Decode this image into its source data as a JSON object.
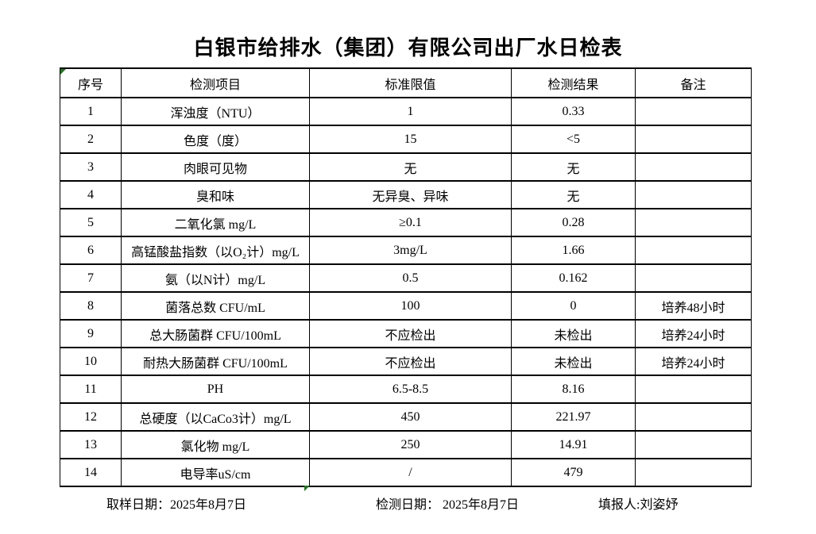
{
  "title": "白银市给排水（集团）有限公司出厂水日检表",
  "table": {
    "headers": [
      "序号",
      "检测项目",
      "标准限值",
      "检测结果",
      "备注"
    ],
    "rows": [
      [
        "1",
        "浑浊度（NTU）",
        "1",
        "0.33",
        ""
      ],
      [
        "2",
        "色度（度）",
        "15",
        "<5",
        ""
      ],
      [
        "3",
        "肉眼可见物",
        "无",
        "无",
        ""
      ],
      [
        "4",
        "臭和味",
        "无异臭、异味",
        "无",
        ""
      ],
      [
        "5",
        "二氧化氯 mg/L",
        "≥0.1",
        "0.28",
        ""
      ],
      [
        "6",
        "高锰酸盐指数（以O₂计）mg/L",
        "3mg/L",
        "1.66",
        ""
      ],
      [
        "7",
        "氨（以N计）mg/L",
        "0.5",
        "0.162",
        ""
      ],
      [
        "8",
        "菌落总数 CFU/mL",
        "100",
        "0",
        "培养48小时"
      ],
      [
        "9",
        "总大肠菌群 CFU/100mL",
        "不应检出",
        "未检出",
        "培养24小时"
      ],
      [
        "10",
        "耐热大肠菌群 CFU/100mL",
        "不应检出",
        "未检出",
        "培养24小时"
      ],
      [
        "11",
        "PH",
        "6.5-8.5",
        "8.16",
        ""
      ],
      [
        "12",
        "总硬度（以CaCo3计）mg/L",
        "450",
        "221.97",
        ""
      ],
      [
        "13",
        "氯化物 mg/L",
        "250",
        "14.91",
        ""
      ],
      [
        "14",
        "电导率uS/cm",
        "/",
        "479",
        ""
      ]
    ]
  },
  "footer": {
    "sampling_date_label": "取样日期：",
    "sampling_date": "2025年8月7日",
    "test_date_label": "检测日期： ",
    "test_date": "2025年8月7日",
    "reporter_label": "填报人:",
    "reporter": "刘姿妤"
  },
  "colors": {
    "marker_green": "#1d7a1d",
    "border": "#000000",
    "background": "#ffffff"
  }
}
